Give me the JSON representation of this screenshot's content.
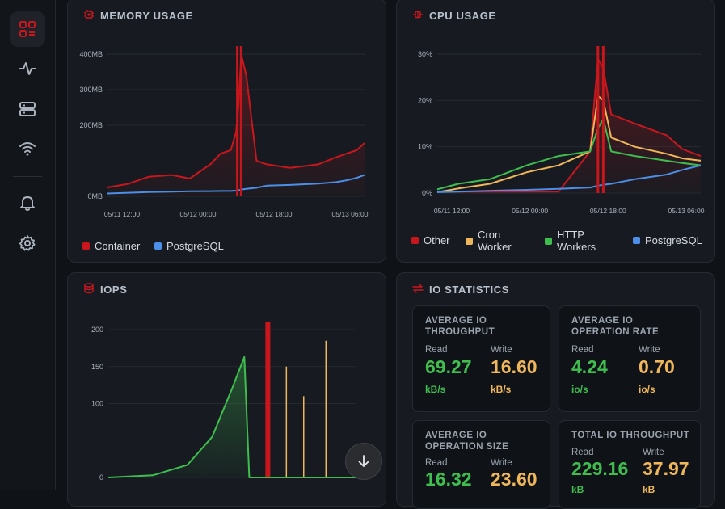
{
  "sidebar": {
    "items": [
      {
        "icon": "dashboard-grid-icon",
        "active": true
      },
      {
        "icon": "activity-pulse-icon",
        "active": false
      },
      {
        "icon": "server-icon",
        "active": false
      },
      {
        "icon": "wifi-icon",
        "active": false
      },
      {
        "icon": "bell-icon",
        "active": false
      },
      {
        "icon": "gear-icon",
        "active": false
      }
    ]
  },
  "colors": {
    "red": "#c8161d",
    "blue": "#4b8fe8",
    "amber": "#f0b75a",
    "green": "#3fbe4f"
  },
  "memory": {
    "title": "MEMORY USAGE",
    "icon": "memory-chip-icon",
    "legend": [
      "Container",
      "PostgreSQL"
    ]
  },
  "cpu": {
    "title": "CPU USAGE",
    "icon": "cpu-icon",
    "legend": [
      "Other",
      "Cron Worker",
      "HTTP Workers",
      "PostgreSQL"
    ]
  },
  "iops": {
    "title": "IOPS",
    "icon": "database-icon"
  },
  "io_stats": {
    "title": "IO STATISTICS",
    "icon": "transfer-arrows-icon",
    "cards": [
      {
        "title": "AVERAGE IO THROUGHPUT",
        "read_label": "Read",
        "read_value": "69.27",
        "read_unit": "kB/s",
        "write_label": "Write",
        "write_value": "16.60",
        "write_unit": "kB/s"
      },
      {
        "title": "AVERAGE IO OPERATION RATE",
        "read_label": "Read",
        "read_value": "4.24",
        "read_unit": "io/s",
        "write_label": "Write",
        "write_value": "0.70",
        "write_unit": "io/s"
      },
      {
        "title": "AVERAGE IO OPERATION SIZE",
        "read_label": "Read",
        "read_value": "16.32",
        "read_unit": "",
        "write_label": "Write",
        "write_value": "23.60",
        "write_unit": ""
      },
      {
        "title": "TOTAL IO THROUGHPUT",
        "read_label": "Read",
        "read_value": "229.16",
        "read_unit": "kB",
        "write_label": "Write",
        "write_value": "37.97",
        "write_unit": "kB"
      }
    ]
  },
  "scroll_button": {
    "icon": "arrow-down-icon"
  },
  "chart_data": [
    {
      "type": "area",
      "title": "MEMORY USAGE",
      "y_unit": "MB",
      "ylim": [
        0,
        400
      ],
      "yticks": [
        "0MB",
        "200MB",
        "300MB",
        "400MB"
      ],
      "xticks": [
        "05/11 12:00",
        "05/12 00:00",
        "05/12 18:00",
        "05/13 06:00"
      ],
      "grid": true,
      "legend_position": "bottom-left",
      "markers": [
        0.505,
        0.52
      ],
      "x": [
        0,
        0.08,
        0.16,
        0.25,
        0.32,
        0.4,
        0.44,
        0.48,
        0.5,
        0.51,
        0.52,
        0.54,
        0.58,
        0.62,
        0.71,
        0.82,
        0.89,
        0.93,
        0.97,
        1.0
      ],
      "series": [
        {
          "name": "Container",
          "color": "#c8161d",
          "values": [
            25,
            35,
            55,
            60,
            50,
            90,
            120,
            130,
            180,
            260,
            400,
            340,
            100,
            90,
            80,
            90,
            110,
            120,
            130,
            150
          ]
        },
        {
          "name": "PostgreSQL",
          "color": "#4b8fe8",
          "values": [
            8,
            10,
            12,
            13,
            14,
            14.5,
            15,
            15,
            16,
            17,
            19,
            21,
            24,
            30,
            32,
            36,
            40,
            45,
            52,
            60
          ]
        }
      ]
    },
    {
      "type": "area",
      "title": "CPU USAGE",
      "y_unit": "%",
      "ylim": [
        0,
        30
      ],
      "yticks": [
        "0%",
        "10%",
        "20%",
        "30%"
      ],
      "xticks": [
        "05/11 12:00",
        "05/12 00:00",
        "05/12 18:00",
        "05/13 06:00"
      ],
      "grid": true,
      "legend_position": "bottom",
      "markers": [
        0.61,
        0.63
      ],
      "x": [
        0,
        0.08,
        0.2,
        0.34,
        0.46,
        0.58,
        0.61,
        0.63,
        0.66,
        0.75,
        0.87,
        0.93,
        1.0
      ],
      "series": [
        {
          "name": "Other",
          "color": "#c8161d",
          "values": [
            0.3,
            0.3,
            0.3,
            0.3,
            0.3,
            9,
            29,
            27,
            17,
            15,
            12.5,
            9.5,
            8
          ]
        },
        {
          "name": "Cron Worker",
          "color": "#f0b75a",
          "values": [
            0.2,
            1,
            2,
            4.5,
            6,
            9,
            21,
            20,
            12,
            10,
            8.5,
            7.5,
            7
          ]
        },
        {
          "name": "HTTP Workers",
          "color": "#3fbe4f",
          "values": [
            0.8,
            2,
            3,
            6,
            8,
            9,
            14,
            16,
            9,
            8,
            7,
            6.5,
            6
          ]
        },
        {
          "name": "PostgreSQL",
          "color": "#4b8fe8",
          "values": [
            0.2,
            0.3,
            0.5,
            0.7,
            0.9,
            1.2,
            1.6,
            1.8,
            2,
            3,
            4,
            5,
            6
          ]
        }
      ]
    },
    {
      "type": "area",
      "title": "IOPS",
      "ylim": [
        0,
        200
      ],
      "yticks": [
        "0",
        "100",
        "150",
        "200"
      ],
      "xticks": [],
      "grid": true,
      "markers": [
        0.64,
        0.65
      ],
      "x": [
        0,
        0.18,
        0.32,
        0.42,
        0.5,
        0.55,
        0.57,
        0.66,
        0.72,
        0.8,
        0.92,
        1.0
      ],
      "series": [
        {
          "name": "",
          "color": "#3fbe4f",
          "values": [
            0,
            3,
            17,
            55,
            120,
            163,
            0,
            0,
            0,
            0,
            0,
            0
          ]
        }
      ],
      "spikes": [
        {
          "x": 0.72,
          "value": 150,
          "color": "#f0b75a"
        },
        {
          "x": 0.79,
          "value": 110,
          "color": "#f0b75a"
        },
        {
          "x": 0.88,
          "value": 185,
          "color": "#f0b75a"
        }
      ]
    }
  ]
}
